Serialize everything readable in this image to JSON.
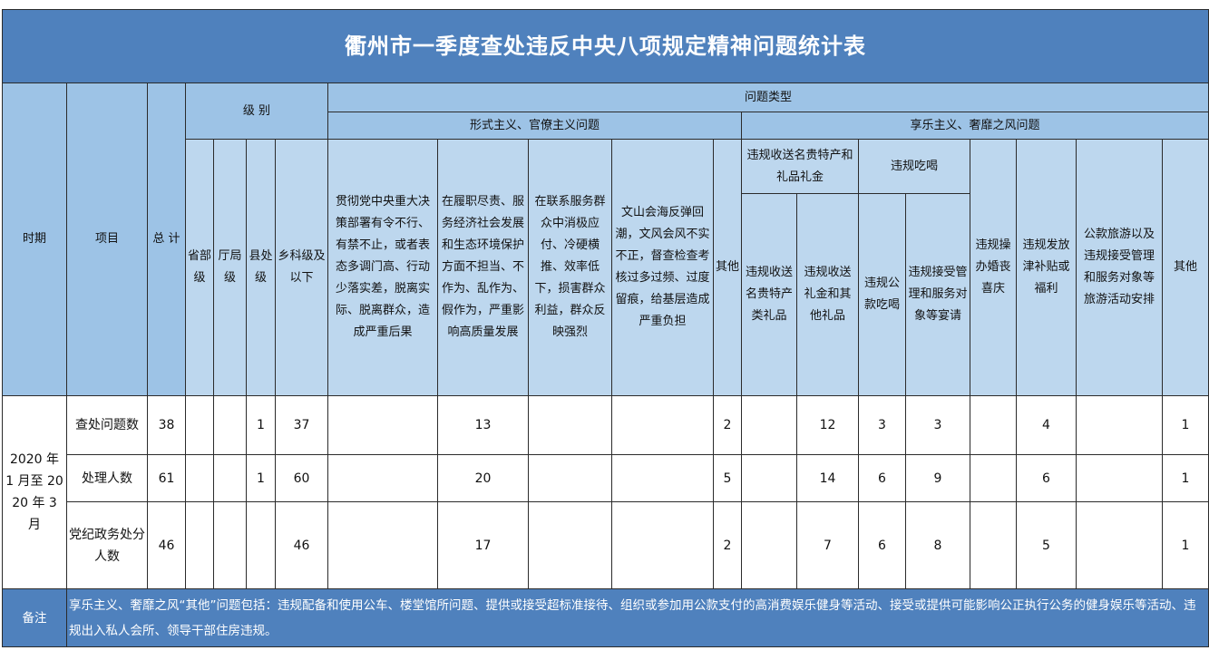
{
  "title": "衢州市一季度查处违反中央八项规定精神问题统计表",
  "headers": {
    "period": "时期",
    "item": "项目",
    "total": "总 计",
    "level": "级 别",
    "levels": [
      "省部级",
      "厅局级",
      "县处级",
      "乡科级及以下"
    ],
    "problem_type": "问题类型",
    "formalism": "形式主义、官僚主义问题",
    "formalism_cols": [
      "贯彻党中央重大决策部署有令不行、有禁不止，或者表态多调门高、行动少落实差，脱离实际、脱离群众，造成严重后果",
      "在履职尽责、服务经济社会发展和生态环境保护方面不担当、不作为、乱作为、假作为，严重影响高质量发展",
      "在联系服务群众中消极应付、冷硬横推、效率低下，损害群众利益，群众反映强烈",
      "文山会海反弹回潮，文风会风不实不正，督查检查考核过多过频、过度留痕，给基层造成严重负担",
      "其他"
    ],
    "hedonism": "享乐主义、奢靡之风问题",
    "gift_group": "违规收送名贵特产和礼品礼金",
    "gift_cols": [
      "违规收送名贵特产类礼品",
      "违规收送礼金和其他礼品"
    ],
    "dining_group": "违规吃喝",
    "dining_cols": [
      "违规公款吃喝",
      "违规接受管理和服务对象等宴请"
    ],
    "other_hedonism_cols": [
      "违规操办婚丧喜庆",
      "违规发放津补贴或福利",
      "公款旅游以及违规接受管理和服务对象等旅游活动安排",
      "其他"
    ]
  },
  "period_value": "2020 年 1 月至 2020 年 3 月",
  "rows": [
    {
      "item": "查处问题数",
      "values": [
        "38",
        "",
        "",
        "1",
        "37",
        "",
        "13",
        "",
        "",
        "2",
        "",
        "12",
        "3",
        "3",
        "",
        "4",
        "",
        "1"
      ]
    },
    {
      "item": "处理人数",
      "values": [
        "61",
        "",
        "",
        "1",
        "60",
        "",
        "20",
        "",
        "",
        "5",
        "",
        "14",
        "6",
        "9",
        "",
        "6",
        "",
        "1"
      ]
    },
    {
      "item": "党纪政务处分人数",
      "values": [
        "46",
        "",
        "",
        "",
        "46",
        "",
        "17",
        "",
        "",
        "2",
        "",
        "7",
        "6",
        "8",
        "",
        "5",
        "",
        "1"
      ]
    }
  ],
  "footer": {
    "label": "备注",
    "note": "享乐主义、奢靡之风“其他”问题包括：违规配备和使用公车、楼堂馆所问题、提供或接受超标准接待、组织或参加用公款支付的高消费娱乐健身等活动、接受或提供可能影响公正执行公务的健身娱乐等活动、违规出入私人会所、领导干部住房违规。"
  },
  "colors": {
    "title_bg": "#4f81bd",
    "header_dark": "#9dc3e6",
    "header_light": "#bdd7ee",
    "footer_bg": "#4f81bd"
  }
}
